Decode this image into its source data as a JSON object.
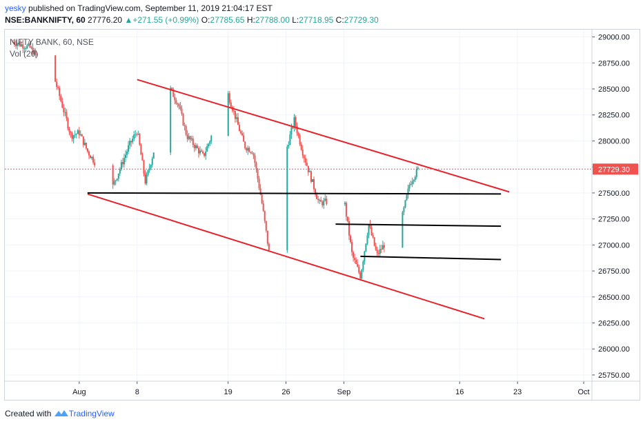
{
  "header": {
    "user": "yesky",
    "published_text": " published on TradingView.com, September 11, 2019 21:04:17 EST"
  },
  "ohlc": {
    "symbol": "NSE:BANKNIFTY, 60",
    "last": "27776.20",
    "change": "+271.55 (+0.99%)",
    "o_label": "O:",
    "o": "27785.65",
    "h_label": "H:",
    "h": "27788.00",
    "l_label": "L:",
    "l": "27718.95",
    "c_label": "C:",
    "c": "27729.30"
  },
  "legend": {
    "title": "NIFTY BANK, 60, NSE",
    "volume": "Vol (20)"
  },
  "footer": {
    "created_with": "Created with",
    "brand": "TradingView"
  },
  "colors": {
    "up": "#26a69a",
    "down": "#ef5350",
    "trendline": "#e8202a",
    "support": "#000000",
    "grid": "#f0f3fa",
    "price_tag": "#ef5350"
  },
  "chart_data": {
    "type": "candlestick",
    "y_axis": {
      "ticks": [
        29000,
        28750,
        28500,
        28250,
        28000,
        27750,
        27500,
        27250,
        27000,
        26750,
        26500,
        26250,
        26000,
        25750
      ],
      "tick_labels": [
        "29000.00",
        "28750.00",
        "28500.00",
        "28250.00",
        "28000.00",
        "27750.00",
        "27500.00",
        "27250.00",
        "27000.00",
        "26750.00",
        "26500.00",
        "26250.00",
        "26000.00",
        "25750.00"
      ],
      "range": [
        25690,
        29070
      ]
    },
    "x_axis": {
      "tick_labels": [
        "Aug",
        "8",
        "19",
        "26",
        "Sep",
        "16",
        "23",
        "Oct"
      ],
      "range": [
        "2019-07-23",
        "2019-10-02"
      ]
    },
    "current_price": 27729.3,
    "current_price_label": "27729.30",
    "close_path": [
      [
        "2019-07-24",
        28950
      ],
      [
        "2019-07-26",
        28900
      ],
      [
        "2019-07-29",
        28600
      ],
      [
        "2019-07-31",
        28050
      ],
      [
        "2019-08-01",
        28080
      ],
      [
        "2019-08-02",
        27900
      ],
      [
        "2019-08-05",
        27550
      ],
      [
        "2019-08-06",
        27750
      ],
      [
        "2019-08-07",
        27950
      ],
      [
        "2019-08-08",
        28100
      ],
      [
        "2019-08-09",
        27600
      ],
      [
        "2019-08-12",
        28500
      ],
      [
        "2019-08-13",
        28350
      ],
      [
        "2019-08-14",
        28050
      ],
      [
        "2019-08-16",
        27850
      ],
      [
        "2019-08-19",
        28450
      ],
      [
        "2019-08-20",
        28200
      ],
      [
        "2019-08-21",
        27950
      ],
      [
        "2019-08-22",
        27900
      ],
      [
        "2019-08-23",
        27450
      ],
      [
        "2019-08-24",
        26900
      ],
      [
        "2019-08-26",
        27900
      ],
      [
        "2019-08-27",
        28200
      ],
      [
        "2019-08-28",
        27900
      ],
      [
        "2019-08-29",
        27650
      ],
      [
        "2019-08-30",
        27400
      ],
      [
        "2019-09-02",
        27450
      ],
      [
        "2019-09-03",
        26900
      ],
      [
        "2019-09-04",
        26700
      ],
      [
        "2019-09-05",
        27200
      ],
      [
        "2019-09-06",
        26900
      ],
      [
        "2019-09-09",
        27250
      ],
      [
        "2019-09-10",
        27600
      ],
      [
        "2019-09-11",
        27729.3
      ]
    ],
    "trendlines": [
      {
        "name": "upper-channel",
        "color": "red",
        "from": [
          "2019-08-08",
          28590
        ],
        "to": [
          "2019-09-22",
          27510
        ]
      },
      {
        "name": "lower-channel",
        "color": "red",
        "from": [
          "2019-08-02",
          27490
        ],
        "to": [
          "2019-09-19",
          26290
        ]
      },
      {
        "name": "support-1",
        "color": "black",
        "from": [
          "2019-08-02",
          27500
        ],
        "to": [
          "2019-09-21",
          27490
        ]
      },
      {
        "name": "support-2",
        "color": "black",
        "from": [
          "2019-09-01",
          27200
        ],
        "to": [
          "2019-09-21",
          27180
        ]
      },
      {
        "name": "support-3",
        "color": "black",
        "from": [
          "2019-09-04",
          26890
        ],
        "to": [
          "2019-09-21",
          26860
        ]
      }
    ]
  }
}
